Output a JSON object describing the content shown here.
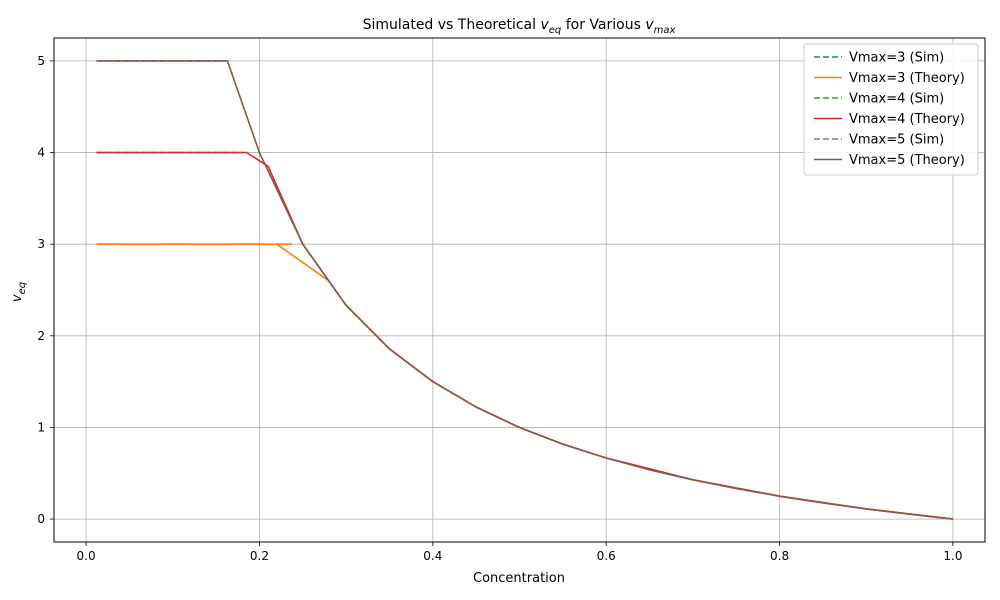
{
  "chart_data": {
    "type": "line",
    "title": "Simulated vs Theoretical v_eq for Various v_max",
    "title_parts": {
      "prefix": "Simulated vs Theoretical ",
      "v1": "v",
      "sub1": "eq",
      "mid": " for Various ",
      "v2": "v",
      "sub2": "max"
    },
    "xlabel": "Concentration",
    "ylabel_parts": {
      "base": "v",
      "sub": "eq"
    },
    "xlim": [
      -0.037,
      1.037
    ],
    "ylim": [
      -0.25,
      5.25
    ],
    "xticks": [
      0.0,
      0.2,
      0.4,
      0.6,
      0.8,
      1.0
    ],
    "xtick_labels": [
      "0.0",
      "0.2",
      "0.4",
      "0.6",
      "0.8",
      "1.0"
    ],
    "yticks": [
      0,
      1,
      2,
      3,
      4,
      5
    ],
    "ytick_labels": [
      "0",
      "1",
      "2",
      "3",
      "4",
      "5"
    ],
    "grid": true,
    "legend_position": "top-right",
    "series": [
      {
        "name": "Vmax=3 (Sim)",
        "color": "#1f77b4",
        "dash": true,
        "points": [
          [
            0.012,
            3.0
          ],
          [
            0.05,
            3.0
          ],
          [
            0.1,
            3.0
          ],
          [
            0.15,
            3.0
          ],
          [
            0.2,
            3.0
          ],
          [
            0.235,
            3.0
          ]
        ]
      },
      {
        "name": "Vmax=3 (Theory)",
        "color": "#ff7f0e",
        "dash": false,
        "points": [
          [
            0.012,
            3.0
          ],
          [
            0.22,
            3.0
          ],
          [
            0.237,
            3.0
          ],
          [
            0.22,
            3.0
          ],
          [
            0.28,
            2.6
          ],
          [
            0.3,
            2.333
          ],
          [
            0.35,
            1.857
          ],
          [
            0.4,
            1.5
          ],
          [
            0.45,
            1.222
          ],
          [
            0.5,
            1.0
          ],
          [
            0.55,
            0.818
          ],
          [
            0.6,
            0.667
          ],
          [
            0.7,
            0.429
          ],
          [
            0.8,
            0.25
          ],
          [
            0.9,
            0.111
          ],
          [
            1.0,
            0.0
          ]
        ]
      },
      {
        "name": "Vmax=4 (Sim)",
        "color": "#2ca02c",
        "dash": true,
        "points": [
          [
            0.012,
            4.0
          ],
          [
            0.05,
            4.0
          ],
          [
            0.1,
            4.0
          ],
          [
            0.15,
            4.0
          ],
          [
            0.18,
            4.0
          ]
        ]
      },
      {
        "name": "Vmax=4 (Theory)",
        "color": "#d62728",
        "dash": false,
        "points": [
          [
            0.012,
            4.0
          ],
          [
            0.185,
            4.0
          ],
          [
            0.21,
            3.85
          ],
          [
            0.25,
            3.0
          ],
          [
            0.3,
            2.333
          ],
          [
            0.35,
            1.857
          ],
          [
            0.4,
            1.5
          ],
          [
            0.45,
            1.222
          ],
          [
            0.5,
            1.0
          ],
          [
            0.55,
            0.818
          ],
          [
            0.6,
            0.667
          ],
          [
            0.7,
            0.429
          ],
          [
            0.8,
            0.25
          ],
          [
            0.9,
            0.111
          ],
          [
            1.0,
            0.0
          ]
        ]
      },
      {
        "name": "Vmax=5 (Sim)",
        "color": "#9467bd",
        "dash": true,
        "points": [
          [
            0.012,
            5.0
          ],
          [
            0.05,
            5.0
          ],
          [
            0.1,
            5.0
          ],
          [
            0.15,
            5.0
          ],
          [
            0.16,
            5.0
          ]
        ]
      },
      {
        "name": "Vmax=5 (Theory)",
        "color": "#8c564b",
        "dash": false,
        "points": [
          [
            0.012,
            5.0
          ],
          [
            0.163,
            5.0
          ],
          [
            0.2,
            4.0
          ],
          [
            0.25,
            3.0
          ],
          [
            0.3,
            2.333
          ],
          [
            0.35,
            1.857
          ],
          [
            0.4,
            1.5
          ],
          [
            0.45,
            1.222
          ],
          [
            0.5,
            1.0
          ],
          [
            0.55,
            0.818
          ],
          [
            0.6,
            0.667
          ],
          [
            0.65,
            0.538
          ],
          [
            0.7,
            0.429
          ],
          [
            0.75,
            0.333
          ],
          [
            0.8,
            0.25
          ],
          [
            0.85,
            0.176
          ],
          [
            0.9,
            0.111
          ],
          [
            0.95,
            0.053
          ],
          [
            1.0,
            0.0
          ]
        ]
      }
    ]
  }
}
